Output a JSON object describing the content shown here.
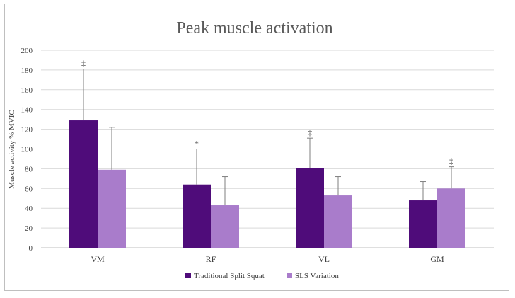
{
  "chart_data": {
    "type": "bar",
    "title": "Peak muscle activation",
    "ylabel": "Muscle activity % MVIC",
    "xlabel": "",
    "ylim": [
      0,
      200
    ],
    "yticks": [
      0,
      20,
      40,
      60,
      80,
      100,
      120,
      140,
      160,
      180,
      200
    ],
    "grid": true,
    "legend_position": "bottom",
    "categories": [
      "VM",
      "RF",
      "VL",
      "GM"
    ],
    "series": [
      {
        "name": "Traditional Split Squat",
        "color": "#4f0c7a",
        "values": [
          129,
          64,
          81,
          48
        ],
        "error_upper": [
          181,
          100,
          111,
          67
        ]
      },
      {
        "name": "SLS Variation",
        "color": "#a97ccb",
        "values": [
          79,
          43,
          53,
          60
        ],
        "error_upper": [
          122,
          72,
          72,
          82
        ]
      }
    ],
    "annotations": [
      {
        "category": "VM",
        "series": 0,
        "text": "‡"
      },
      {
        "category": "RF",
        "series": 0,
        "text": "*"
      },
      {
        "category": "VL",
        "series": 0,
        "text": "‡"
      },
      {
        "category": "GM",
        "series": 1,
        "text": "‡"
      }
    ]
  }
}
